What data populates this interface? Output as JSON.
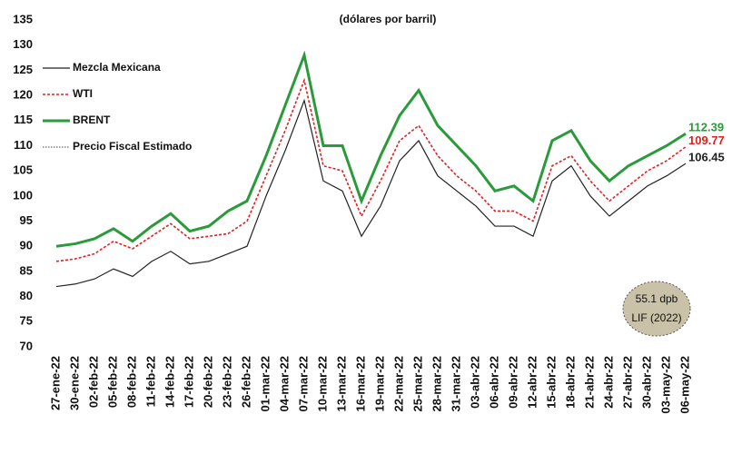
{
  "chart_data": {
    "type": "line",
    "subtitle": "(dólares por barril)",
    "categories": [
      "27-ene-22",
      "30-ene-22",
      "02-feb-22",
      "05-feb-22",
      "08-feb-22",
      "11-feb-22",
      "14-feb-22",
      "17-feb-22",
      "20-feb-22",
      "23-feb-22",
      "26-feb-22",
      "01-mar-22",
      "04-mar-22",
      "07-mar-22",
      "10-mar-22",
      "13-mar-22",
      "16-mar-22",
      "19-mar-22",
      "22-mar-22",
      "25-mar-22",
      "28-mar-22",
      "31-mar-22",
      "03-abr-22",
      "06-abr-22",
      "09-abr-22",
      "12-abr-22",
      "15-abr-22",
      "18-abr-22",
      "21-abr-22",
      "24-abr-22",
      "27-abr-22",
      "30-abr-22",
      "03-may-22",
      "06-may-22"
    ],
    "series": [
      {
        "name": "Mezcla Mexicana",
        "color": "#222222",
        "dash": "none",
        "width": 1.2,
        "values": [
          82,
          82.5,
          83.5,
          85.5,
          84,
          87,
          89,
          86.5,
          87,
          88.5,
          90,
          100,
          109,
          119,
          103,
          101,
          92,
          98,
          107,
          111,
          104,
          101,
          98,
          94,
          94,
          92,
          103,
          106,
          100,
          96,
          99,
          102,
          104,
          106.45
        ],
        "value_labels": [
          null,
          null,
          null,
          null,
          null,
          null,
          null,
          null,
          null,
          null,
          null,
          null,
          null,
          null,
          null,
          null,
          null,
          null,
          null,
          null,
          null,
          null,
          null,
          null,
          null,
          null,
          null,
          null,
          null,
          null,
          null,
          null,
          null,
          "106.45"
        ]
      },
      {
        "name": "WTI",
        "color": "#e02020",
        "dash": "3,2",
        "width": 1.6,
        "values": [
          87,
          87.5,
          88.5,
          91,
          89.5,
          92,
          94.5,
          91.5,
          92,
          92.5,
          95,
          104,
          113,
          123,
          106,
          105,
          96,
          103,
          111,
          114,
          108,
          104,
          101,
          97,
          97,
          95,
          106,
          108,
          103,
          99,
          102,
          105,
          107,
          109.77
        ],
        "value_labels": [
          null,
          null,
          null,
          null,
          null,
          null,
          null,
          null,
          null,
          null,
          null,
          null,
          null,
          null,
          null,
          null,
          null,
          null,
          null,
          null,
          null,
          null,
          null,
          null,
          null,
          null,
          null,
          null,
          null,
          null,
          null,
          null,
          null,
          "109.77"
        ]
      },
      {
        "name": "BRENT",
        "color": "#2a9a3a",
        "dash": "none",
        "width": 3,
        "values": [
          90,
          90.5,
          91.5,
          93.5,
          91,
          94,
          96.5,
          93,
          94,
          97,
          99,
          108,
          118,
          128,
          110,
          110,
          99,
          108,
          116,
          121,
          114,
          110,
          106,
          101,
          102,
          99,
          111,
          113,
          107,
          103,
          106,
          108,
          110,
          112.39
        ],
        "value_labels": [
          null,
          null,
          null,
          null,
          null,
          null,
          null,
          null,
          null,
          null,
          null,
          null,
          null,
          null,
          null,
          null,
          null,
          null,
          null,
          null,
          null,
          null,
          null,
          null,
          null,
          null,
          null,
          null,
          null,
          null,
          null,
          null,
          null,
          "112.39"
        ]
      },
      {
        "name": "Precio Fiscal Estimado",
        "color": "#444444",
        "dash": "1.5,1.5",
        "width": 1,
        "value": 55.1,
        "value_label": "55.1 dpb",
        "note": "LIF (2022)"
      }
    ],
    "ylim": [
      70,
      135
    ],
    "yticks": [
      70,
      75,
      80,
      85,
      90,
      95,
      100,
      105,
      110,
      115,
      120,
      125,
      130,
      135
    ]
  }
}
